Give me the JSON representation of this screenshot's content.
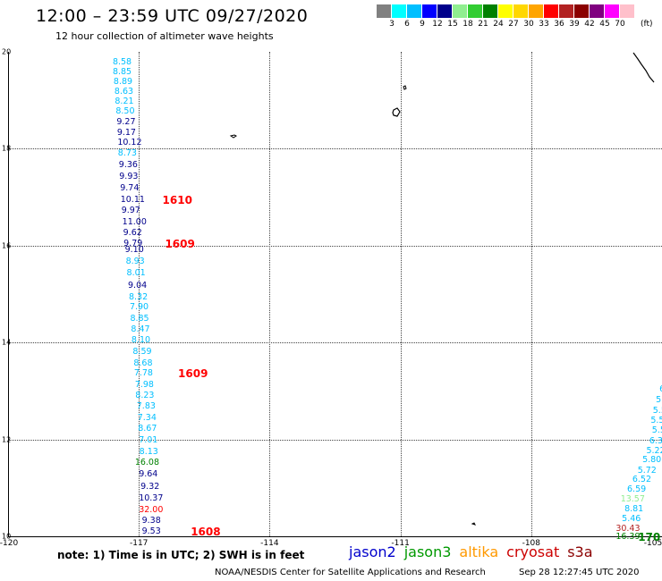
{
  "header": {
    "title": "12:00 – 23:59 UTC 09/27/2020",
    "subtitle": "12 hour collection of altimeter wave heights"
  },
  "colorbar": {
    "unit": "(ft)",
    "colors": [
      "#808080",
      "#00ffff",
      "#00bfff",
      "#0000ff",
      "#00008b",
      "#90ee90",
      "#32cd32",
      "#008000",
      "#ffff00",
      "#ffd700",
      "#ffa500",
      "#ff0000",
      "#b22222",
      "#8b0000",
      "#800080",
      "#ff00ff",
      "#ffc0cb"
    ],
    "labels": [
      "3",
      "6",
      "9",
      "12",
      "15",
      "18",
      "21",
      "24",
      "27",
      "30",
      "33",
      "36",
      "39",
      "42",
      "45",
      "70"
    ]
  },
  "map": {
    "lat_labels": [
      "20",
      "18",
      "16",
      "14",
      "12",
      "10"
    ],
    "lon_labels": [
      "-120",
      "-117",
      "-114",
      "-111",
      "-108",
      "-105"
    ],
    "lat_range": [
      10,
      20
    ],
    "lon_range": [
      -120,
      -105
    ]
  },
  "observations": [
    {
      "value": "8.58",
      "color": "#00bfff",
      "lon": -117.6,
      "lat": 19.77
    },
    {
      "value": "8.85",
      "color": "#00bfff",
      "lon": -117.6,
      "lat": 19.57
    },
    {
      "value": "8.89",
      "color": "#00bfff",
      "lon": -117.58,
      "lat": 19.37
    },
    {
      "value": "8.63",
      "color": "#00bfff",
      "lon": -117.56,
      "lat": 19.17
    },
    {
      "value": "8.21",
      "color": "#00bfff",
      "lon": -117.55,
      "lat": 18.97
    },
    {
      "value": "8.50",
      "color": "#00bfff",
      "lon": -117.53,
      "lat": 18.77
    },
    {
      "value": "9.27",
      "color": "#00008b",
      "lon": -117.51,
      "lat": 18.55
    },
    {
      "value": "9.17",
      "color": "#00008b",
      "lon": -117.5,
      "lat": 18.33
    },
    {
      "value": "10.12",
      "color": "#00008b",
      "lon": -117.49,
      "lat": 18.12
    },
    {
      "value": "8.73",
      "color": "#00bfff",
      "lon": -117.48,
      "lat": 17.9
    },
    {
      "value": "9.36",
      "color": "#00008b",
      "lon": -117.46,
      "lat": 17.66
    },
    {
      "value": "9.93",
      "color": "#00008b",
      "lon": -117.45,
      "lat": 17.42
    },
    {
      "value": "9.74",
      "color": "#00008b",
      "lon": -117.43,
      "lat": 17.18
    },
    {
      "value": "10.11",
      "color": "#00008b",
      "lon": -117.42,
      "lat": 16.93
    },
    {
      "value": "9.97",
      "color": "#00008b",
      "lon": -117.4,
      "lat": 16.71
    },
    {
      "value": "11.00",
      "color": "#00008b",
      "lon": -117.38,
      "lat": 16.48
    },
    {
      "value": "9.62",
      "color": "#00008b",
      "lon": -117.36,
      "lat": 16.26
    },
    {
      "value": "9.79",
      "color": "#00008b",
      "lon": -117.35,
      "lat": 16.04
    },
    {
      "value": "9.10",
      "color": "#00008b",
      "lon": -117.32,
      "lat": 15.9
    },
    {
      "value": "8.93",
      "color": "#00bfff",
      "lon": -117.3,
      "lat": 15.66
    },
    {
      "value": "8.01",
      "color": "#00bfff",
      "lon": -117.28,
      "lat": 15.42
    },
    {
      "value": "9.04",
      "color": "#00008b",
      "lon": -117.25,
      "lat": 15.17
    },
    {
      "value": "8.32",
      "color": "#00bfff",
      "lon": -117.23,
      "lat": 14.93
    },
    {
      "value": "7.90",
      "color": "#00bfff",
      "lon": -117.21,
      "lat": 14.72
    },
    {
      "value": "8.85",
      "color": "#00bfff",
      "lon": -117.2,
      "lat": 14.49
    },
    {
      "value": "8.47",
      "color": "#00bfff",
      "lon": -117.18,
      "lat": 14.26
    },
    {
      "value": "8.10",
      "color": "#00bfff",
      "lon": -117.17,
      "lat": 14.04
    },
    {
      "value": "8.59",
      "color": "#00bfff",
      "lon": -117.14,
      "lat": 13.8
    },
    {
      "value": "8.68",
      "color": "#00bfff",
      "lon": -117.12,
      "lat": 13.57
    },
    {
      "value": "7.78",
      "color": "#00bfff",
      "lon": -117.11,
      "lat": 13.35
    },
    {
      "value": "7.98",
      "color": "#00bfff",
      "lon": -117.09,
      "lat": 13.12
    },
    {
      "value": "8.23",
      "color": "#00bfff",
      "lon": -117.08,
      "lat": 12.89
    },
    {
      "value": "7.83",
      "color": "#00bfff",
      "lon": -117.05,
      "lat": 12.67
    },
    {
      "value": "7.34",
      "color": "#00bfff",
      "lon": -117.03,
      "lat": 12.44
    },
    {
      "value": "8.67",
      "color": "#00bfff",
      "lon": -117.02,
      "lat": 12.21
    },
    {
      "value": "7.01",
      "color": "#00bfff",
      "lon": -117.0,
      "lat": 11.98
    },
    {
      "value": "8.13",
      "color": "#00bfff",
      "lon": -116.99,
      "lat": 11.74
    },
    {
      "value": "16.08",
      "color": "#008000",
      "lon": -117.09,
      "lat": 11.51
    },
    {
      "value": "9.64",
      "color": "#00008b",
      "lon": -117.0,
      "lat": 11.28
    },
    {
      "value": "9.32",
      "color": "#00008b",
      "lon": -116.96,
      "lat": 11.01
    },
    {
      "value": "10.37",
      "color": "#00008b",
      "lon": -117.0,
      "lat": 10.77
    },
    {
      "value": "32.00",
      "color": "#ff0000",
      "lon": -117.0,
      "lat": 10.54
    },
    {
      "value": "9.38",
      "color": "#00008b",
      "lon": -116.93,
      "lat": 10.31
    },
    {
      "value": "9.53",
      "color": "#00008b",
      "lon": -116.93,
      "lat": 10.09
    },
    {
      "value": "6",
      "color": "#00bfff",
      "lon": -105.06,
      "lat": 13.02
    },
    {
      "value": "5",
      "color": "#00bfff",
      "lon": -105.14,
      "lat": 12.8
    },
    {
      "value": "5.5",
      "color": "#00bfff",
      "lon": -105.21,
      "lat": 12.59
    },
    {
      "value": "5.5",
      "color": "#00bfff",
      "lon": -105.26,
      "lat": 12.38
    },
    {
      "value": "5.53",
      "color": "#00bfff",
      "lon": -105.23,
      "lat": 12.17
    },
    {
      "value": "6.35",
      "color": "#00bfff",
      "lon": -105.29,
      "lat": 11.96
    },
    {
      "value": "5.22",
      "color": "#00bfff",
      "lon": -105.36,
      "lat": 11.76
    },
    {
      "value": "5.80",
      "color": "#00bfff",
      "lon": -105.45,
      "lat": 11.56
    },
    {
      "value": "5.72",
      "color": "#00bfff",
      "lon": -105.56,
      "lat": 11.35
    },
    {
      "value": "6.52",
      "color": "#00bfff",
      "lon": -105.68,
      "lat": 11.16
    },
    {
      "value": "6.59",
      "color": "#00bfff",
      "lon": -105.8,
      "lat": 10.96
    },
    {
      "value": "13.57",
      "color": "#90ee90",
      "lon": -105.95,
      "lat": 10.75
    },
    {
      "value": "8.81",
      "color": "#00bfff",
      "lon": -105.86,
      "lat": 10.55
    },
    {
      "value": "5.46",
      "color": "#00bfff",
      "lon": -105.92,
      "lat": 10.35
    },
    {
      "value": "30.43",
      "color": "#b22222",
      "lon": -106.06,
      "lat": 10.15
    },
    {
      "value": "16.39",
      "color": "#008000",
      "lon": -106.06,
      "lat": 9.98
    }
  ],
  "track_labels": [
    {
      "text": "1610",
      "lon": -116.46,
      "lat": 16.93
    },
    {
      "text": "1609",
      "lon": -116.4,
      "lat": 16.04
    },
    {
      "text": "1609",
      "lon": -116.1,
      "lat": 13.35
    },
    {
      "text": "1608",
      "lon": -115.81,
      "lat": 10.09
    },
    {
      "text": "170",
      "lon": -105.55,
      "lat": 9.98
    }
  ],
  "footer": {
    "note": "note: 1) Time is in UTC; 2) SWH is in feet",
    "satellites": [
      {
        "name": "jason2",
        "color": "#0000cc"
      },
      {
        "name": "jason3",
        "color": "#009900"
      },
      {
        "name": "altika",
        "color": "#ff9900"
      },
      {
        "name": "cryosat",
        "color": "#cc0000"
      },
      {
        "name": "s3a",
        "color": "#8b0000"
      }
    ],
    "credit": "NOAA/NESDIS Center for Satellite Applications and Research",
    "timestamp": "Sep 28 12:27:45 UTC 2020"
  }
}
